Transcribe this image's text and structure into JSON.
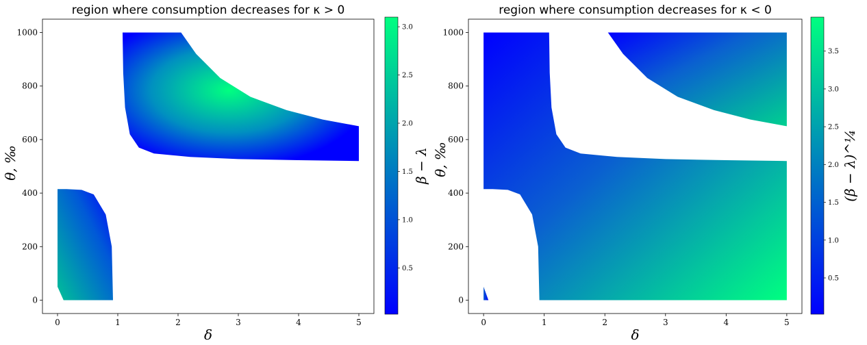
{
  "figure": {
    "panels": [
      {
        "title": "region where consumption decreases for κ > 0",
        "xlabel": "δ",
        "ylabel": "θ, ‰",
        "colorbar_label": "β − λ",
        "x_ticks": [
          "0",
          "1",
          "2",
          "3",
          "4",
          "5"
        ],
        "y_ticks": [
          "0",
          "200",
          "400",
          "600",
          "800",
          "1000"
        ],
        "cb_ticks": [
          "0.5",
          "1.0",
          "1.5",
          "2.0",
          "2.5",
          "3.0"
        ]
      },
      {
        "title": "region where consumption decreases for κ < 0",
        "xlabel": "δ",
        "ylabel": "θ, ‰",
        "colorbar_label": "(β − λ)^¼",
        "x_ticks": [
          "0",
          "1",
          "2",
          "3",
          "4",
          "5"
        ],
        "y_ticks": [
          "0",
          "200",
          "400",
          "600",
          "800",
          "1000"
        ],
        "cb_ticks": [
          "0.5",
          "1.0",
          "1.5",
          "2.0",
          "2.5",
          "3.0",
          "3.5"
        ]
      }
    ]
  },
  "chart_data": [
    {
      "type": "heatmap",
      "title": "region where consumption decreases for κ > 0",
      "xlabel": "δ",
      "ylabel": "θ, ‰",
      "xlim": [
        -0.25,
        5.25
      ],
      "ylim": [
        -50,
        1050
      ],
      "colorbar": {
        "label": "β − λ",
        "range": [
          0.02,
          3.1
        ],
        "ticks": [
          0.5,
          1.0,
          1.5,
          2.0,
          2.5,
          3.0
        ],
        "colormap": "winter",
        "color_low": "#0000ff",
        "color_high": "#00ff80"
      },
      "regions": [
        {
          "name": "lower-left region",
          "outline": [
            [
              0.0,
              50
            ],
            [
              0.1,
              0
            ],
            [
              0.92,
              0
            ],
            [
              0.9,
              200
            ],
            [
              0.8,
              320
            ],
            [
              0.6,
              395
            ],
            [
              0.4,
              412
            ],
            [
              0.15,
              415
            ],
            [
              0.0,
              415
            ]
          ]
        },
        {
          "name": "upper band",
          "outline": [
            [
              1.08,
              1000
            ],
            [
              2.05,
              1000
            ],
            [
              2.3,
              920
            ],
            [
              2.7,
              830
            ],
            [
              3.2,
              760
            ],
            [
              3.8,
              710
            ],
            [
              4.4,
              675
            ],
            [
              5.0,
              650
            ],
            [
              5.0,
              520
            ],
            [
              4.0,
              523
            ],
            [
              3.0,
              527
            ],
            [
              2.2,
              535
            ],
            [
              1.6,
              548
            ],
            [
              1.35,
              570
            ],
            [
              1.2,
              620
            ],
            [
              1.12,
              720
            ],
            [
              1.09,
              850
            ]
          ]
        }
      ]
    },
    {
      "type": "heatmap",
      "title": "region where consumption decreases for κ < 0",
      "xlabel": "δ",
      "ylabel": "θ, ‰",
      "xlim": [
        -0.25,
        5.25
      ],
      "ylim": [
        -50,
        1050
      ],
      "colorbar": {
        "label": "(β − λ)^¼",
        "range": [
          0.02,
          3.95
        ],
        "ticks": [
          0.5,
          1.0,
          1.5,
          2.0,
          2.5,
          3.0,
          3.5
        ],
        "colormap": "winter",
        "color_low": "#0000ff",
        "color_high": "#00ff80"
      },
      "regions": [
        {
          "name": "small triangle",
          "outline": [
            [
              0.0,
              50
            ],
            [
              0.0,
              0
            ],
            [
              0.08,
              0
            ]
          ]
        },
        {
          "name": "main region",
          "outline": [
            [
              0.0,
              1000
            ],
            [
              1.08,
              1000
            ],
            [
              1.09,
              850
            ],
            [
              1.12,
              720
            ],
            [
              1.2,
              620
            ],
            [
              1.35,
              570
            ],
            [
              1.6,
              548
            ],
            [
              2.2,
              535
            ],
            [
              3.0,
              527
            ],
            [
              4.0,
              523
            ],
            [
              5.0,
              520
            ],
            [
              5.0,
              0
            ],
            [
              0.92,
              0
            ],
            [
              0.9,
              200
            ],
            [
              0.8,
              320
            ],
            [
              0.6,
              395
            ],
            [
              0.4,
              412
            ],
            [
              0.15,
              415
            ],
            [
              0.0,
              415
            ]
          ]
        },
        {
          "name": "upper right region",
          "outline": [
            [
              2.05,
              1000
            ],
            [
              5.0,
              1000
            ],
            [
              5.0,
              650
            ],
            [
              4.4,
              675
            ],
            [
              3.8,
              710
            ],
            [
              3.2,
              760
            ],
            [
              2.7,
              830
            ],
            [
              2.3,
              920
            ]
          ]
        }
      ]
    }
  ]
}
